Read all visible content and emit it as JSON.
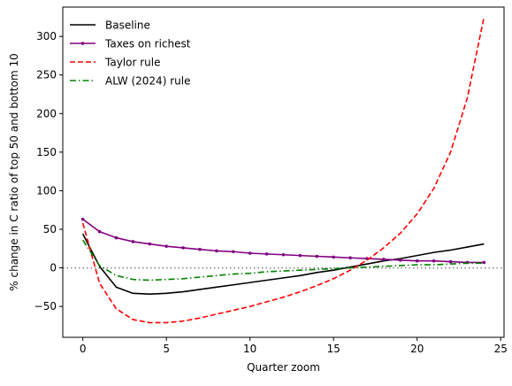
{
  "chart_data": {
    "type": "line",
    "title": "",
    "xlabel": "Quarter zoom",
    "ylabel": "% change in C ratio of top 50 and bottom 10",
    "xlim": [
      -1.2,
      25.2
    ],
    "ylim": [
      -90,
      338
    ],
    "xticks": [
      0,
      5,
      10,
      15,
      20,
      25
    ],
    "yticks": [
      -50,
      0,
      50,
      100,
      150,
      200,
      250,
      300
    ],
    "grid": false,
    "legend_position": "top-left",
    "reference_line": {
      "y": 0,
      "color": "#808080",
      "style": "dotted"
    },
    "x": [
      0,
      1,
      2,
      3,
      4,
      5,
      6,
      7,
      8,
      9,
      10,
      11,
      12,
      13,
      14,
      15,
      16,
      17,
      18,
      19,
      20,
      21,
      22,
      23,
      24
    ],
    "series": [
      {
        "name": "Baseline",
        "color": "#000000",
        "style": "solid",
        "marker": "none",
        "values": [
          44,
          2,
          -25,
          -33,
          -34,
          -33,
          -31,
          -28,
          -25,
          -22,
          -19,
          -16,
          -13,
          -10,
          -6,
          -3,
          1,
          5,
          9,
          12,
          16,
          20,
          23,
          27,
          31
        ]
      },
      {
        "name": "Taxes on richest",
        "color": "#800080",
        "style": "solid",
        "marker": "dot",
        "values": [
          63,
          47,
          39,
          34,
          31,
          28,
          26,
          24,
          22,
          21,
          19,
          18,
          17,
          16,
          15,
          14,
          13,
          12,
          11,
          10,
          9,
          9,
          8,
          7,
          7
        ]
      },
      {
        "name": "Taylor rule",
        "color": "#ff0000",
        "style": "dashed",
        "marker": "none",
        "values": [
          58,
          -20,
          -53,
          -67,
          -71,
          -71,
          -69,
          -65,
          -60,
          -55,
          -50,
          -44,
          -38,
          -31,
          -23,
          -14,
          -3,
          10,
          26,
          45,
          70,
          103,
          150,
          220,
          325
        ]
      },
      {
        "name": "ALW (2024) rule",
        "color": "#008000",
        "style": "dashdot",
        "marker": "none",
        "values": [
          36,
          3,
          -10,
          -15,
          -16,
          -15,
          -14,
          -12,
          -10,
          -8,
          -7,
          -5,
          -4,
          -3,
          -2,
          -1,
          0,
          1,
          2,
          3,
          4,
          4,
          5,
          6,
          6
        ]
      }
    ]
  }
}
